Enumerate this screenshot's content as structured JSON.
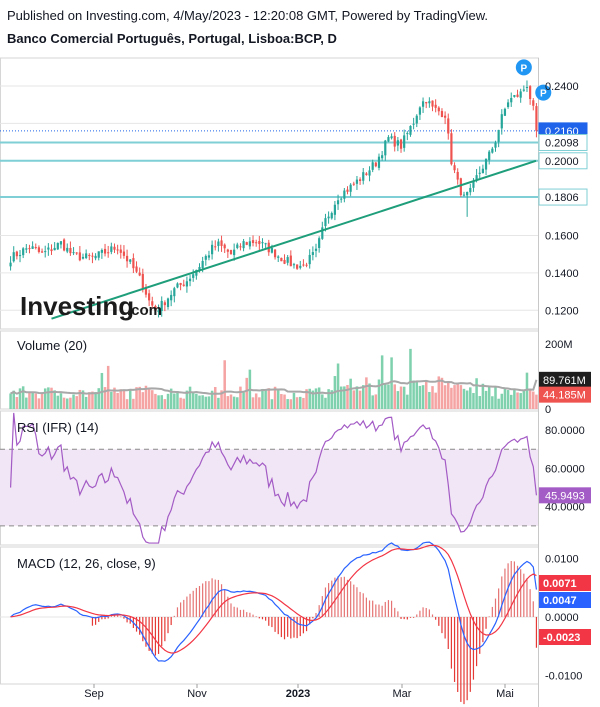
{
  "header": {
    "published": "Published on Investing.com, 4/May/2023 - 12:20:08 GMT, Powered by TradingView.",
    "instrument": "Banco Comercial Português, Portugal, Lisboa:BCP, D"
  },
  "logo": {
    "text": "Investing",
    "suffix": ".com"
  },
  "colors": {
    "up": "#26a69a",
    "down": "#ef5350",
    "trendline": "#1e9e7a",
    "hline": "#7fcfd6",
    "lastprice": "#1e63e9",
    "rsi": "#a35bc5",
    "rsi_band": "#f1e6f5",
    "macd": "#2962ff",
    "signal": "#f23645",
    "volma": "#a8a8a8",
    "grid": "#e6e6e6",
    "badge": "#2196f3"
  },
  "chart_data": [
    {
      "type": "candlestick",
      "title": "Banco Comercial Português, Portugal, Lisboa:BCP, D",
      "ylim": [
        0.11,
        0.255
      ],
      "y_ticks": [
        "0.2400",
        "0.1600",
        "0.1400",
        "0.1200"
      ],
      "price_labels": [
        {
          "value": 0.216,
          "text": "0.2160",
          "kind": "last"
        },
        {
          "value": 0.2098,
          "text": "0.2098",
          "kind": "level"
        },
        {
          "value": 0.2,
          "text": "0.2000",
          "kind": "level"
        },
        {
          "value": 0.1806,
          "text": "0.1806",
          "kind": "level"
        }
      ],
      "horizontal_levels": [
        0.2098,
        0.2,
        0.1806
      ],
      "trendline": [
        [
          13,
          0.1155
        ],
        [
          174,
          0.2
        ]
      ],
      "pivot_markers": [
        "P",
        "P"
      ],
      "x_axis_ticks": [
        "Sep",
        "Nov",
        "2023",
        "Mar",
        "Mai"
      ],
      "anchors": [
        [
          0,
          0.148
        ],
        [
          6,
          0.154
        ],
        [
          10,
          0.15
        ],
        [
          16,
          0.156
        ],
        [
          20,
          0.149
        ],
        [
          26,
          0.148
        ],
        [
          30,
          0.151
        ],
        [
          34,
          0.154
        ],
        [
          38,
          0.145
        ],
        [
          42,
          0.134
        ],
        [
          44,
          0.125
        ],
        [
          46,
          0.12
        ],
        [
          48,
          0.123
        ],
        [
          52,
          0.131
        ],
        [
          56,
          0.136
        ],
        [
          60,
          0.144
        ],
        [
          64,
          0.153
        ],
        [
          66,
          0.155
        ],
        [
          70,
          0.15
        ],
        [
          74,
          0.156
        ],
        [
          78,
          0.157
        ],
        [
          82,
          0.153
        ],
        [
          86,
          0.148
        ],
        [
          90,
          0.144
        ],
        [
          93,
          0.144
        ],
        [
          97,
          0.151
        ],
        [
          100,
          0.168
        ],
        [
          104,
          0.181
        ],
        [
          108,
          0.186
        ],
        [
          112,
          0.192
        ],
        [
          116,
          0.199
        ],
        [
          120,
          0.212
        ],
        [
          124,
          0.208
        ],
        [
          128,
          0.221
        ],
        [
          130,
          0.23
        ],
        [
          132,
          0.233
        ],
        [
          134,
          0.228
        ],
        [
          138,
          0.225
        ],
        [
          140,
          0.2
        ],
        [
          142,
          0.188
        ],
        [
          144,
          0.18
        ],
        [
          146,
          0.183
        ],
        [
          148,
          0.191
        ],
        [
          150,
          0.197
        ],
        [
          152,
          0.203
        ],
        [
          154,
          0.211
        ],
        [
          156,
          0.223
        ],
        [
          158,
          0.232
        ],
        [
          160,
          0.234
        ],
        [
          162,
          0.236
        ],
        [
          164,
          0.241
        ],
        [
          166,
          0.227
        ],
        [
          167,
          0.216
        ]
      ],
      "n_bars": 168
    },
    {
      "type": "bar",
      "title": "Volume (20)",
      "ylim": [
        0,
        240000000
      ],
      "y_ticks": [
        "200M",
        "0"
      ],
      "value_labels": [
        "89.761M",
        "44.185M"
      ],
      "ma_label_value": 89761000,
      "last_value": 44185000
    },
    {
      "type": "line",
      "title": "RSI (IFR) (14)",
      "ylim": [
        20,
        90
      ],
      "y_ticks": [
        "80.0000",
        "60.0000",
        "40.0000"
      ],
      "band": [
        30,
        70
      ],
      "last_value": 45.9493,
      "last_label": "45.9493"
    },
    {
      "type": "line",
      "title": "MACD (12, 26, close, 9)",
      "ylim": [
        -0.0115,
        0.012
      ],
      "y_ticks": [
        "0.0100",
        "0.0000",
        "-0.0100"
      ],
      "labels": [
        {
          "text": "0.0071",
          "kind": "signal"
        },
        {
          "text": "0.0047",
          "kind": "macd"
        },
        {
          "text": "-0.0023",
          "kind": "hist"
        }
      ],
      "last_values": {
        "macd": 0.0047,
        "signal": 0.0071,
        "hist": -0.0023
      }
    }
  ],
  "panes": {
    "volume_title": "Volume (20)",
    "rsi_title": "RSI (IFR) (14)",
    "macd_title": "MACD (12, 26, close, 9)"
  }
}
